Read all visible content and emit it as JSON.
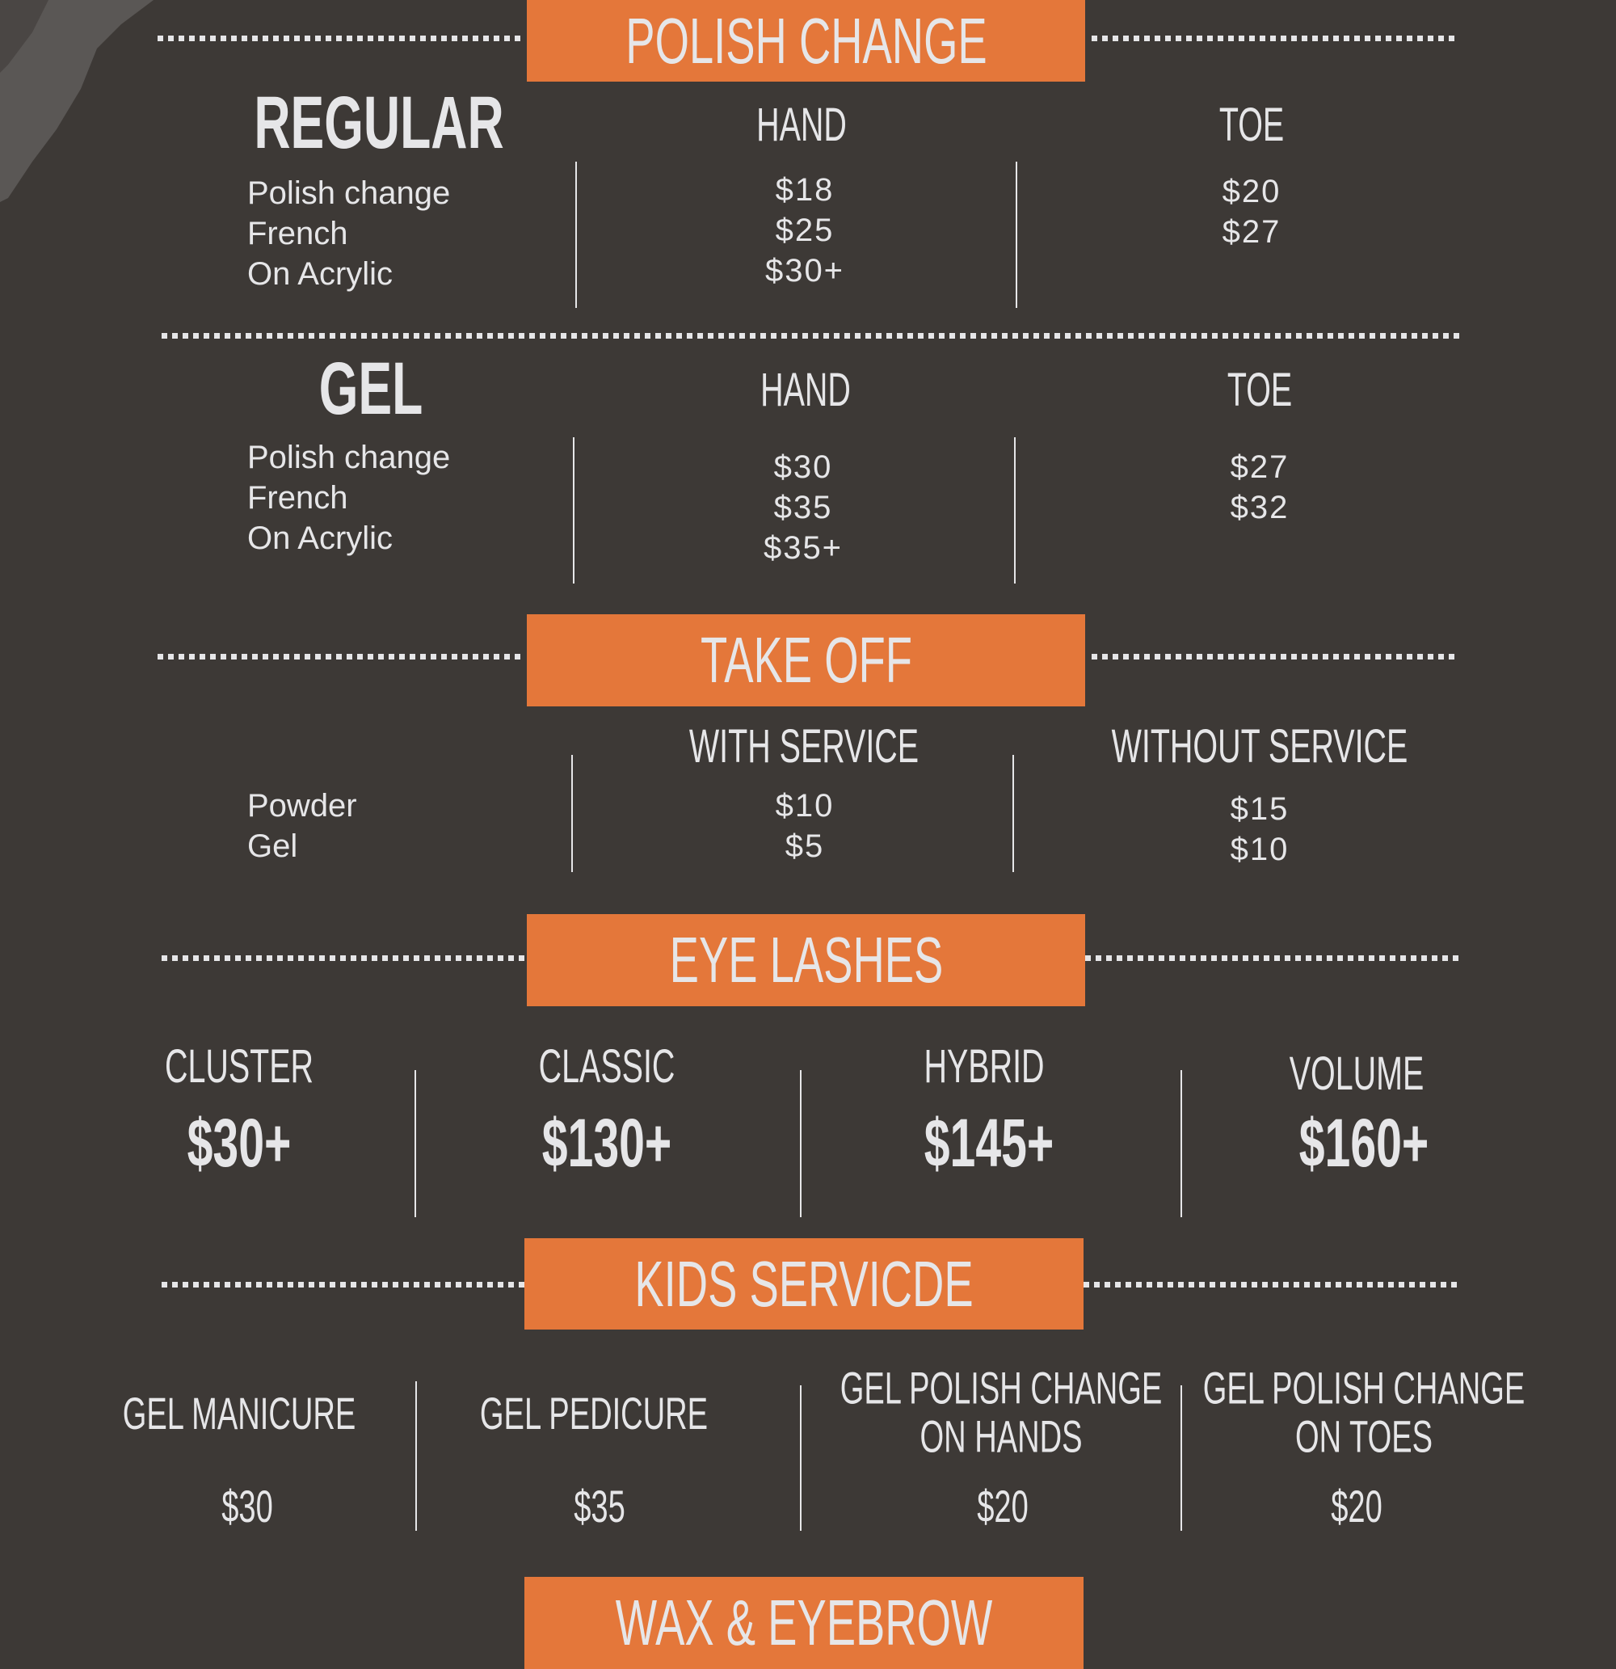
{
  "colors": {
    "background": "#3d3936",
    "accent": "#e4773a",
    "text": "#e6e6e8"
  },
  "polish_change": {
    "title": "POLISH CHANGE",
    "regular": {
      "title": "REGULAR",
      "hand_header": "HAND",
      "toe_header": "TOE",
      "items": [
        "Polish change",
        "French",
        "On Acrylic"
      ],
      "hand_prices": [
        "$18",
        "$25",
        "$30+"
      ],
      "toe_prices": [
        "$20",
        "$27"
      ]
    },
    "gel": {
      "title": "GEL",
      "hand_header": "HAND",
      "toe_header": "TOE",
      "items": [
        "Polish change",
        "French",
        "On Acrylic"
      ],
      "hand_prices": [
        "$30",
        "$35",
        "$35+"
      ],
      "toe_prices": [
        "$27",
        "$32"
      ]
    }
  },
  "take_off": {
    "title": "TAKE OFF",
    "with_header": "WITH SERVICE",
    "without_header": "WITHOUT SERVICE",
    "items": [
      "Powder",
      "Gel"
    ],
    "with_prices": [
      "$10",
      "$5"
    ],
    "without_prices": [
      "$15",
      "$10"
    ]
  },
  "eye_lashes": {
    "title": "EYE LASHES",
    "items": [
      {
        "name": "CLUSTER",
        "price": "$30+"
      },
      {
        "name": "CLASSIC",
        "price": "$130+"
      },
      {
        "name": "HYBRID",
        "price": "$145+"
      },
      {
        "name": "VOLUME",
        "price": "$160+"
      }
    ]
  },
  "kids": {
    "title": "KIDS SERVICDE",
    "items": [
      {
        "line1": "GEL MANICURE",
        "line2": "",
        "price": "$30"
      },
      {
        "line1": "GEL PEDICURE",
        "line2": "",
        "price": "$35"
      },
      {
        "line1": "GEL POLISH CHANGE",
        "line2": "ON HANDS",
        "price": "$20"
      },
      {
        "line1": "GEL POLISH CHANGE",
        "line2": "ON TOES",
        "price": "$20"
      }
    ]
  },
  "wax": {
    "title": "WAX & EYEBROW"
  }
}
